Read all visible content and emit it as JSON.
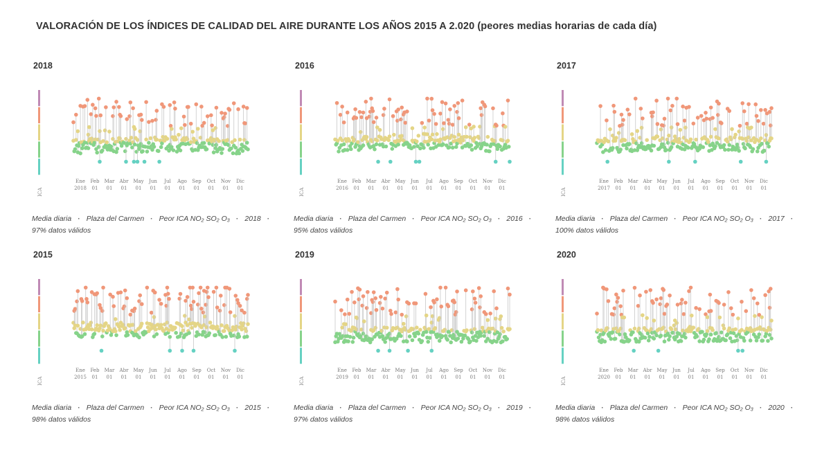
{
  "page": {
    "title": "VALORACIÓN DE LOS ÍNDICES DE CALIDAD DEL AIRE DURANTE LOS AÑOS 2015 A 2.020 (peores medias horarias de cada día)"
  },
  "colors": {
    "good": "#86d38a",
    "fair": "#e4d586",
    "moderate": "#f09779",
    "extreme": "#65d1c2",
    "stem": "#c8c8c8",
    "scale": [
      "#65d1c2",
      "#86d38a",
      "#e4d586",
      "#f09779",
      "#c08ab5"
    ]
  },
  "legend": {
    "ica_label": "ICA"
  },
  "month_labels": [
    "Ene",
    "Feb",
    "Mar",
    "Abr",
    "May",
    "Jun",
    "Jul",
    "Ago",
    "Sep",
    "Oct",
    "Nov",
    "Dic"
  ],
  "day_labels": [
    "01",
    "01",
    "01",
    "01",
    "01",
    "01",
    "01",
    "01",
    "01",
    "01",
    "01"
  ],
  "footer_parts": [
    "Media diaria",
    "Plaza del Carmen",
    "Peor ICA NO₂ SO₂ O₃"
  ],
  "panels": [
    {
      "year": "2018",
      "valid": "97% datos válidos",
      "seed": 11,
      "base": 1.25,
      "drift": 0.15
    },
    {
      "year": "2016",
      "valid": "95% datos válidos",
      "seed": 23,
      "base": 1.3,
      "drift": 0.3
    },
    {
      "year": "2017",
      "valid": "100% datos válidos",
      "seed": 37,
      "base": 1.35,
      "drift": 0.1
    },
    {
      "year": "2015",
      "valid": "98% datos válidos",
      "seed": 41,
      "base": 1.6,
      "drift": 0.0
    },
    {
      "year": "2019",
      "valid": "97% datos válidos",
      "seed": 53,
      "base": 1.3,
      "drift": 0.0
    },
    {
      "year": "2020",
      "valid": "98% datos válidos",
      "seed": 67,
      "base": 1.3,
      "drift": 0.05
    }
  ],
  "chart_data": [
    {
      "type": "scatter",
      "title": "2018",
      "series": "Media diaria · Plaza del Carmen · Peor ICA NO₂ SO₂ O₃",
      "x_range": [
        "2018-01-01",
        "2018-12-31"
      ],
      "y_scale": "ICA (categorías)",
      "grid": false
    },
    {
      "type": "scatter",
      "title": "2016",
      "series": "Media diaria · Plaza del Carmen · Peor ICA NO₂ SO₂ O₃",
      "x_range": [
        "2016-01-01",
        "2016-12-31"
      ],
      "y_scale": "ICA (categorías)",
      "grid": false
    },
    {
      "type": "scatter",
      "title": "2017",
      "series": "Media diaria · Plaza del Carmen · Peor ICA NO₂ SO₂ O₃",
      "x_range": [
        "2017-01-01",
        "2017-12-31"
      ],
      "y_scale": "ICA (categorías)",
      "grid": false
    },
    {
      "type": "scatter",
      "title": "2015",
      "series": "Media diaria · Plaza del Carmen · Peor ICA NO₂ SO₂ O₃",
      "x_range": [
        "2015-01-01",
        "2015-12-31"
      ],
      "y_scale": "ICA (categorías)",
      "grid": false
    },
    {
      "type": "scatter",
      "title": "2019",
      "series": "Media diaria · Plaza del Carmen · Peor ICA NO₂ SO₂ O₃",
      "x_range": [
        "2019-01-01",
        "2019-12-31"
      ],
      "y_scale": "ICA (categorías)",
      "grid": false
    },
    {
      "type": "scatter",
      "title": "2020",
      "series": "Media diaria · Plaza del Carmen · Peor ICA NO₂ SO₂ O₃",
      "x_range": [
        "2020-01-01",
        "2020-12-31"
      ],
      "y_scale": "ICA (categorías)",
      "grid": false
    }
  ]
}
